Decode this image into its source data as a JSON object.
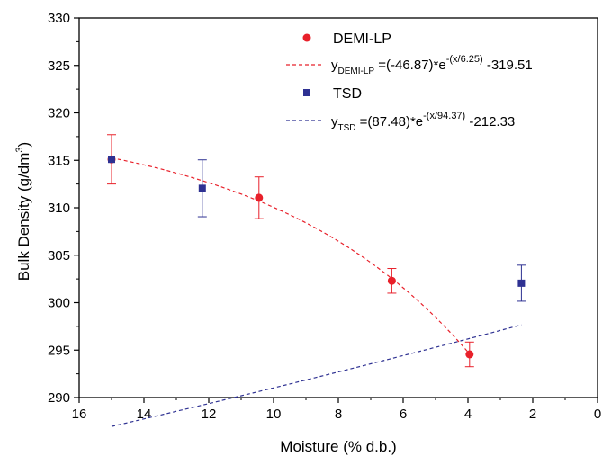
{
  "chart_data": {
    "type": "scatter",
    "xlabel": "Moisture (% d.b.)",
    "ylabel_main": "Bulk Density (g/dm",
    "ylabel_sup": "3",
    "ylabel_close": ")",
    "xlim": [
      16,
      0
    ],
    "ylim": [
      290,
      330
    ],
    "x_ticks": [
      16,
      14,
      12,
      10,
      8,
      6,
      4,
      2,
      0
    ],
    "y_ticks": [
      290,
      295,
      300,
      305,
      310,
      315,
      320,
      325,
      330
    ],
    "x_tick_labels": [
      "16",
      "14",
      "12",
      "10",
      "8",
      "6",
      "4",
      "2",
      "0"
    ],
    "y_tick_labels": [
      "290",
      "295",
      "300",
      "305",
      "310",
      "315",
      "320",
      "325",
      "330"
    ],
    "grid": false,
    "legend_position": "top-right",
    "series": [
      {
        "name": "DEMI-LP",
        "marker": "circle",
        "color": "#e8202a",
        "x": [
          15.0,
          10.45,
          6.35,
          3.95
        ],
        "y": [
          315.1,
          311.05,
          302.3,
          294.55
        ],
        "err": [
          2.6,
          2.2,
          1.3,
          1.3
        ],
        "fit": {
          "a": -46.87,
          "t": 6.25,
          "c": -319.51
        },
        "equation": {
          "y": "y",
          "sub": "DEMI-LP",
          "mid": " =(-46.87)*e",
          "sup": "-(x/6.25)",
          "tail": " -319.51"
        }
      },
      {
        "name": "TSD",
        "marker": "square",
        "color": "#2e3192",
        "x": [
          15.0,
          12.2,
          2.35
        ],
        "y": [
          315.1,
          312.05,
          302.05
        ],
        "err": [
          0,
          3.0,
          1.9
        ],
        "fit": {
          "a": 87.48,
          "t": 94.37,
          "c": -212.33
        },
        "equation": {
          "y": "y",
          "sub": "TSD",
          "mid": "   =(87.48)*e",
          "sup": "-(x/94.37)",
          "tail": " -212.33"
        }
      }
    ]
  }
}
